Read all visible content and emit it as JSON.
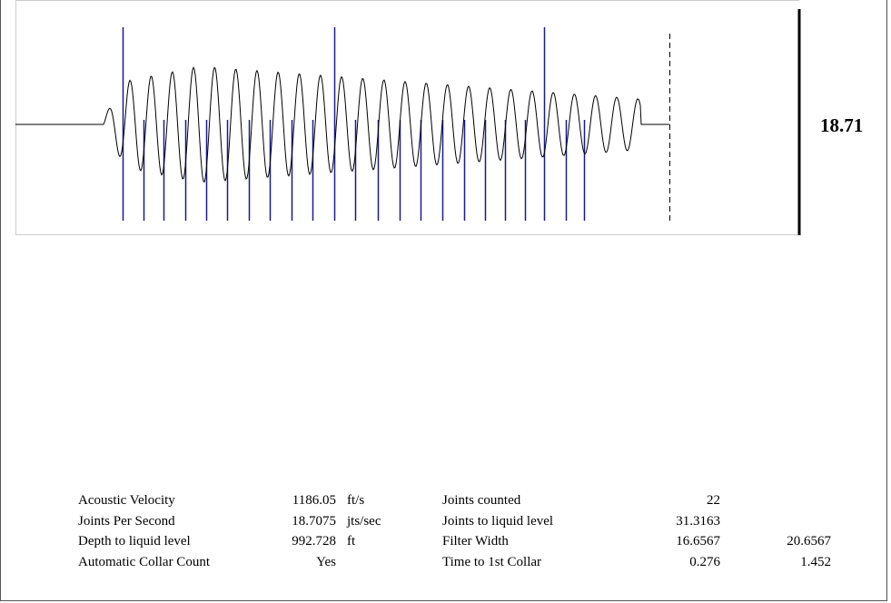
{
  "readout": "18.71",
  "table": {
    "rows": [
      {
        "label": "Acoustic Velocity",
        "value": "1186.05",
        "unit": "ft/s",
        "label2": "Joints counted",
        "value2": "22"
      },
      {
        "label": "Joints Per Second",
        "value": "18.7075",
        "unit": "jts/sec",
        "label2": "Joints to liquid level",
        "value2": "31.3163"
      },
      {
        "label": "Depth to liquid level",
        "value": "992.728",
        "unit": "ft",
        "label2": "Filter Width",
        "value2": "16.6567",
        "value3": "20.6567"
      },
      {
        "label": "Automatic Collar Count",
        "value": "Yes",
        "label2": "Time to 1st Collar",
        "value2": "0.276",
        "value3": "1.452"
      }
    ]
  }
}
